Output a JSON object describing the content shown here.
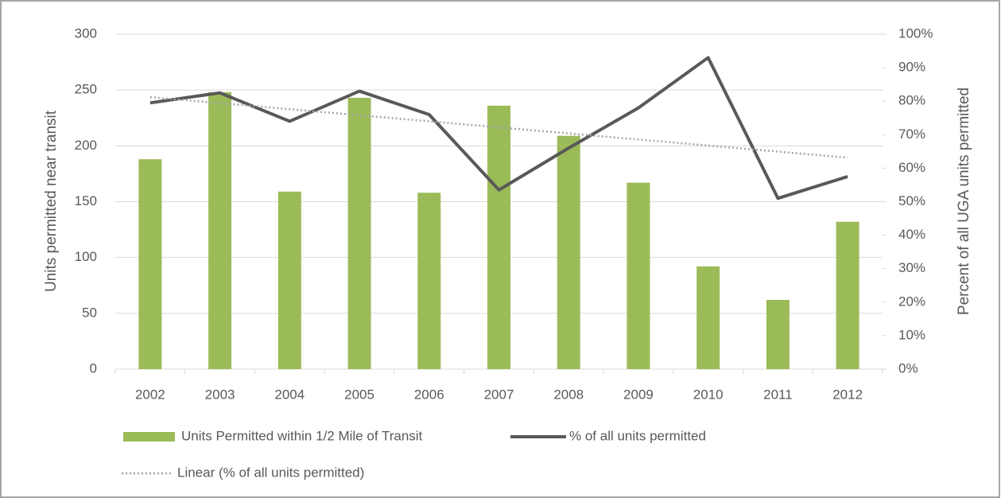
{
  "chart_data": {
    "type": "bar-line",
    "categories": [
      "2002",
      "2003",
      "2004",
      "2005",
      "2006",
      "2007",
      "2008",
      "2009",
      "2010",
      "2011",
      "2012"
    ],
    "series": [
      {
        "name": "Units Permitted within 1/2 Mile of Transit",
        "color": "#9bbb59",
        "type": "bar",
        "values": [
          188,
          248,
          159,
          243,
          158,
          236,
          209,
          167,
          92,
          62,
          132
        ]
      },
      {
        "name": "% of all units permitted",
        "color": "#595959",
        "type": "line",
        "axis": "y2",
        "values": [
          79.5,
          82.5,
          74,
          83,
          76,
          53.5,
          66,
          78,
          93,
          51,
          57.5
        ]
      }
    ],
    "trendline": {
      "name": "Linear (% of all units permitted)",
      "color": "#a6a6a6"
    },
    "ylabel": "Units permitted near transit",
    "y2label": "Percent of all UGA units permitted",
    "ylim": [
      0,
      300
    ],
    "yticks": [
      0,
      50,
      100,
      150,
      200,
      250,
      300
    ],
    "y2lim": [
      0,
      100
    ],
    "y2ticks": [
      {
        "value": 0,
        "label": "0%"
      },
      {
        "value": 10,
        "label": "10%"
      },
      {
        "value": 20,
        "label": "20%"
      },
      {
        "value": 30,
        "label": "30%"
      },
      {
        "value": 40,
        "label": "40%"
      },
      {
        "value": 50,
        "label": "50%"
      },
      {
        "value": 60,
        "label": "60%"
      },
      {
        "value": 70,
        "label": "70%"
      },
      {
        "value": 80,
        "label": "80%"
      },
      {
        "value": 90,
        "label": "90%"
      },
      {
        "value": 100,
        "label": "100%"
      }
    ],
    "grid": true
  }
}
